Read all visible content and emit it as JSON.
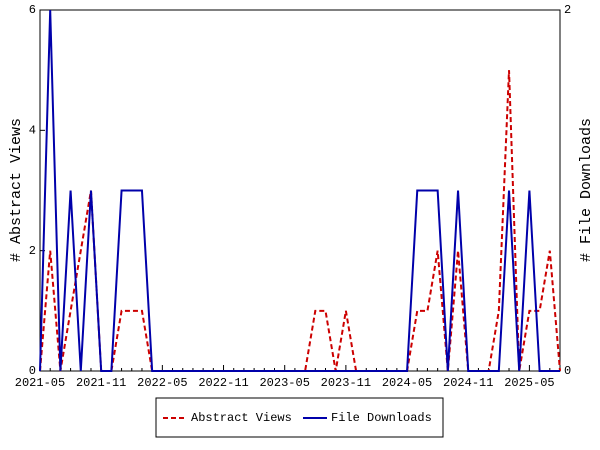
{
  "chart_data": {
    "type": "line",
    "categories": [
      "2021-05",
      null,
      null,
      null,
      null,
      null,
      "2021-11",
      null,
      null,
      null,
      null,
      null,
      "2022-05",
      null,
      null,
      null,
      null,
      null,
      "2022-11",
      null,
      null,
      null,
      null,
      null,
      "2023-05",
      null,
      null,
      null,
      null,
      null,
      "2023-11",
      null,
      null,
      null,
      null,
      null,
      "2024-05",
      null,
      null,
      null,
      null,
      null,
      "2024-11",
      null,
      null,
      null,
      null,
      null,
      "2025-05",
      null,
      null,
      null
    ],
    "y_label": "# Abstract Views",
    "y2_label": "# File Downloads",
    "ylim": [
      0,
      6
    ],
    "yticks": [
      0,
      2,
      4,
      6
    ],
    "y2lim": [
      0,
      2
    ],
    "y2ticks": [
      0,
      2
    ],
    "series": [
      {
        "name": "Abstract Views",
        "color": "#cc0000",
        "style": "dashed",
        "values": [
          0,
          2,
          0,
          1,
          2,
          3,
          0,
          0,
          1,
          1,
          1,
          0,
          0,
          0,
          0,
          0,
          0,
          0,
          0,
          0,
          0,
          0,
          0,
          0,
          0,
          0,
          0,
          1,
          1,
          0,
          1,
          0,
          0,
          0,
          0,
          0,
          0,
          1,
          1,
          2,
          0,
          2,
          0,
          0,
          0,
          1,
          5,
          0,
          1,
          1,
          2,
          0
        ]
      },
      {
        "name": "File Downloads",
        "color": "#0000aa",
        "style": "solid",
        "axis": "y2",
        "values": [
          0,
          2,
          0,
          1,
          0,
          1,
          0,
          0,
          1,
          1,
          1,
          0,
          0,
          0,
          0,
          0,
          0,
          0,
          0,
          0,
          0,
          0,
          0,
          0,
          0,
          0,
          0,
          0,
          0,
          0,
          0,
          0,
          0,
          0,
          0,
          0,
          0,
          1,
          1,
          1,
          0,
          1,
          0,
          0,
          0,
          0,
          1,
          0,
          1,
          0,
          0,
          0
        ]
      }
    ]
  }
}
